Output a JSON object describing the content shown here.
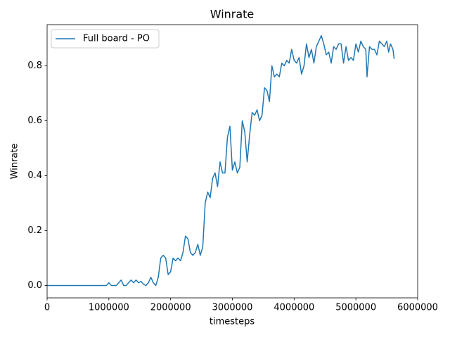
{
  "chart_data": {
    "type": "line",
    "title": "Winrate",
    "xlabel": "timesteps",
    "ylabel": "Winrate",
    "x": [
      0,
      200000,
      400000,
      600000,
      800000,
      960000,
      1000000,
      1040000,
      1120000,
      1160000,
      1200000,
      1240000,
      1280000,
      1320000,
      1360000,
      1400000,
      1440000,
      1480000,
      1520000,
      1560000,
      1600000,
      1640000,
      1680000,
      1720000,
      1760000,
      1800000,
      1840000,
      1880000,
      1920000,
      1960000,
      2000000,
      2040000,
      2080000,
      2120000,
      2160000,
      2200000,
      2240000,
      2280000,
      2320000,
      2360000,
      2400000,
      2440000,
      2480000,
      2520000,
      2560000,
      2600000,
      2640000,
      2680000,
      2720000,
      2760000,
      2800000,
      2840000,
      2880000,
      2920000,
      2960000,
      3000000,
      3040000,
      3080000,
      3120000,
      3160000,
      3200000,
      3240000,
      3280000,
      3320000,
      3360000,
      3400000,
      3440000,
      3480000,
      3520000,
      3560000,
      3600000,
      3640000,
      3680000,
      3720000,
      3760000,
      3800000,
      3840000,
      3880000,
      3920000,
      3960000,
      4000000,
      4040000,
      4080000,
      4120000,
      4160000,
      4200000,
      4240000,
      4280000,
      4320000,
      4360000,
      4400000,
      4440000,
      4480000,
      4520000,
      4560000,
      4600000,
      4640000,
      4680000,
      4720000,
      4760000,
      4800000,
      4840000,
      4880000,
      4920000,
      4960000,
      5000000,
      5040000,
      5080000,
      5120000,
      5160000,
      5180000,
      5220000,
      5260000,
      5300000,
      5340000,
      5380000,
      5420000,
      5460000,
      5500000,
      5530000,
      5560000,
      5600000,
      5620000
    ],
    "series": [
      {
        "name": "Full board - PO",
        "color": "#1f77b4",
        "values": [
          0,
          0,
          0,
          0,
          0,
          0,
          0.01,
          0,
          0,
          0.01,
          0.02,
          0,
          0,
          0.01,
          0.02,
          0.01,
          0.02,
          0.01,
          0.015,
          0.005,
          0,
          0.01,
          0.03,
          0.01,
          0,
          0.03,
          0.1,
          0.11,
          0.1,
          0.04,
          0.05,
          0.1,
          0.09,
          0.1,
          0.09,
          0.12,
          0.18,
          0.17,
          0.12,
          0.11,
          0.12,
          0.15,
          0.11,
          0.14,
          0.3,
          0.34,
          0.32,
          0.39,
          0.41,
          0.36,
          0.45,
          0.41,
          0.41,
          0.54,
          0.58,
          0.42,
          0.45,
          0.41,
          0.43,
          0.6,
          0.56,
          0.45,
          0.55,
          0.63,
          0.62,
          0.64,
          0.6,
          0.62,
          0.72,
          0.71,
          0.67,
          0.8,
          0.76,
          0.77,
          0.76,
          0.81,
          0.8,
          0.82,
          0.81,
          0.86,
          0.82,
          0.81,
          0.83,
          0.77,
          0.8,
          0.88,
          0.83,
          0.86,
          0.81,
          0.87,
          0.89,
          0.91,
          0.88,
          0.84,
          0.85,
          0.81,
          0.87,
          0.86,
          0.88,
          0.88,
          0.81,
          0.87,
          0.82,
          0.83,
          0.82,
          0.88,
          0.85,
          0.89,
          0.87,
          0.86,
          0.76,
          0.87,
          0.86,
          0.86,
          0.84,
          0.89,
          0.88,
          0.87,
          0.89,
          0.85,
          0.88,
          0.86,
          0.825
        ]
      }
    ],
    "xlim": [
      0,
      6000000
    ],
    "xticks": [
      0,
      1000000,
      2000000,
      3000000,
      4000000,
      5000000,
      6000000
    ],
    "ylim": [
      -0.045,
      0.95
    ],
    "yticks": [
      {
        "value": 0,
        "label": "0.0"
      },
      0.2,
      0.4,
      0.6,
      0.8
    ],
    "legend": "upper left",
    "grid": false
  }
}
